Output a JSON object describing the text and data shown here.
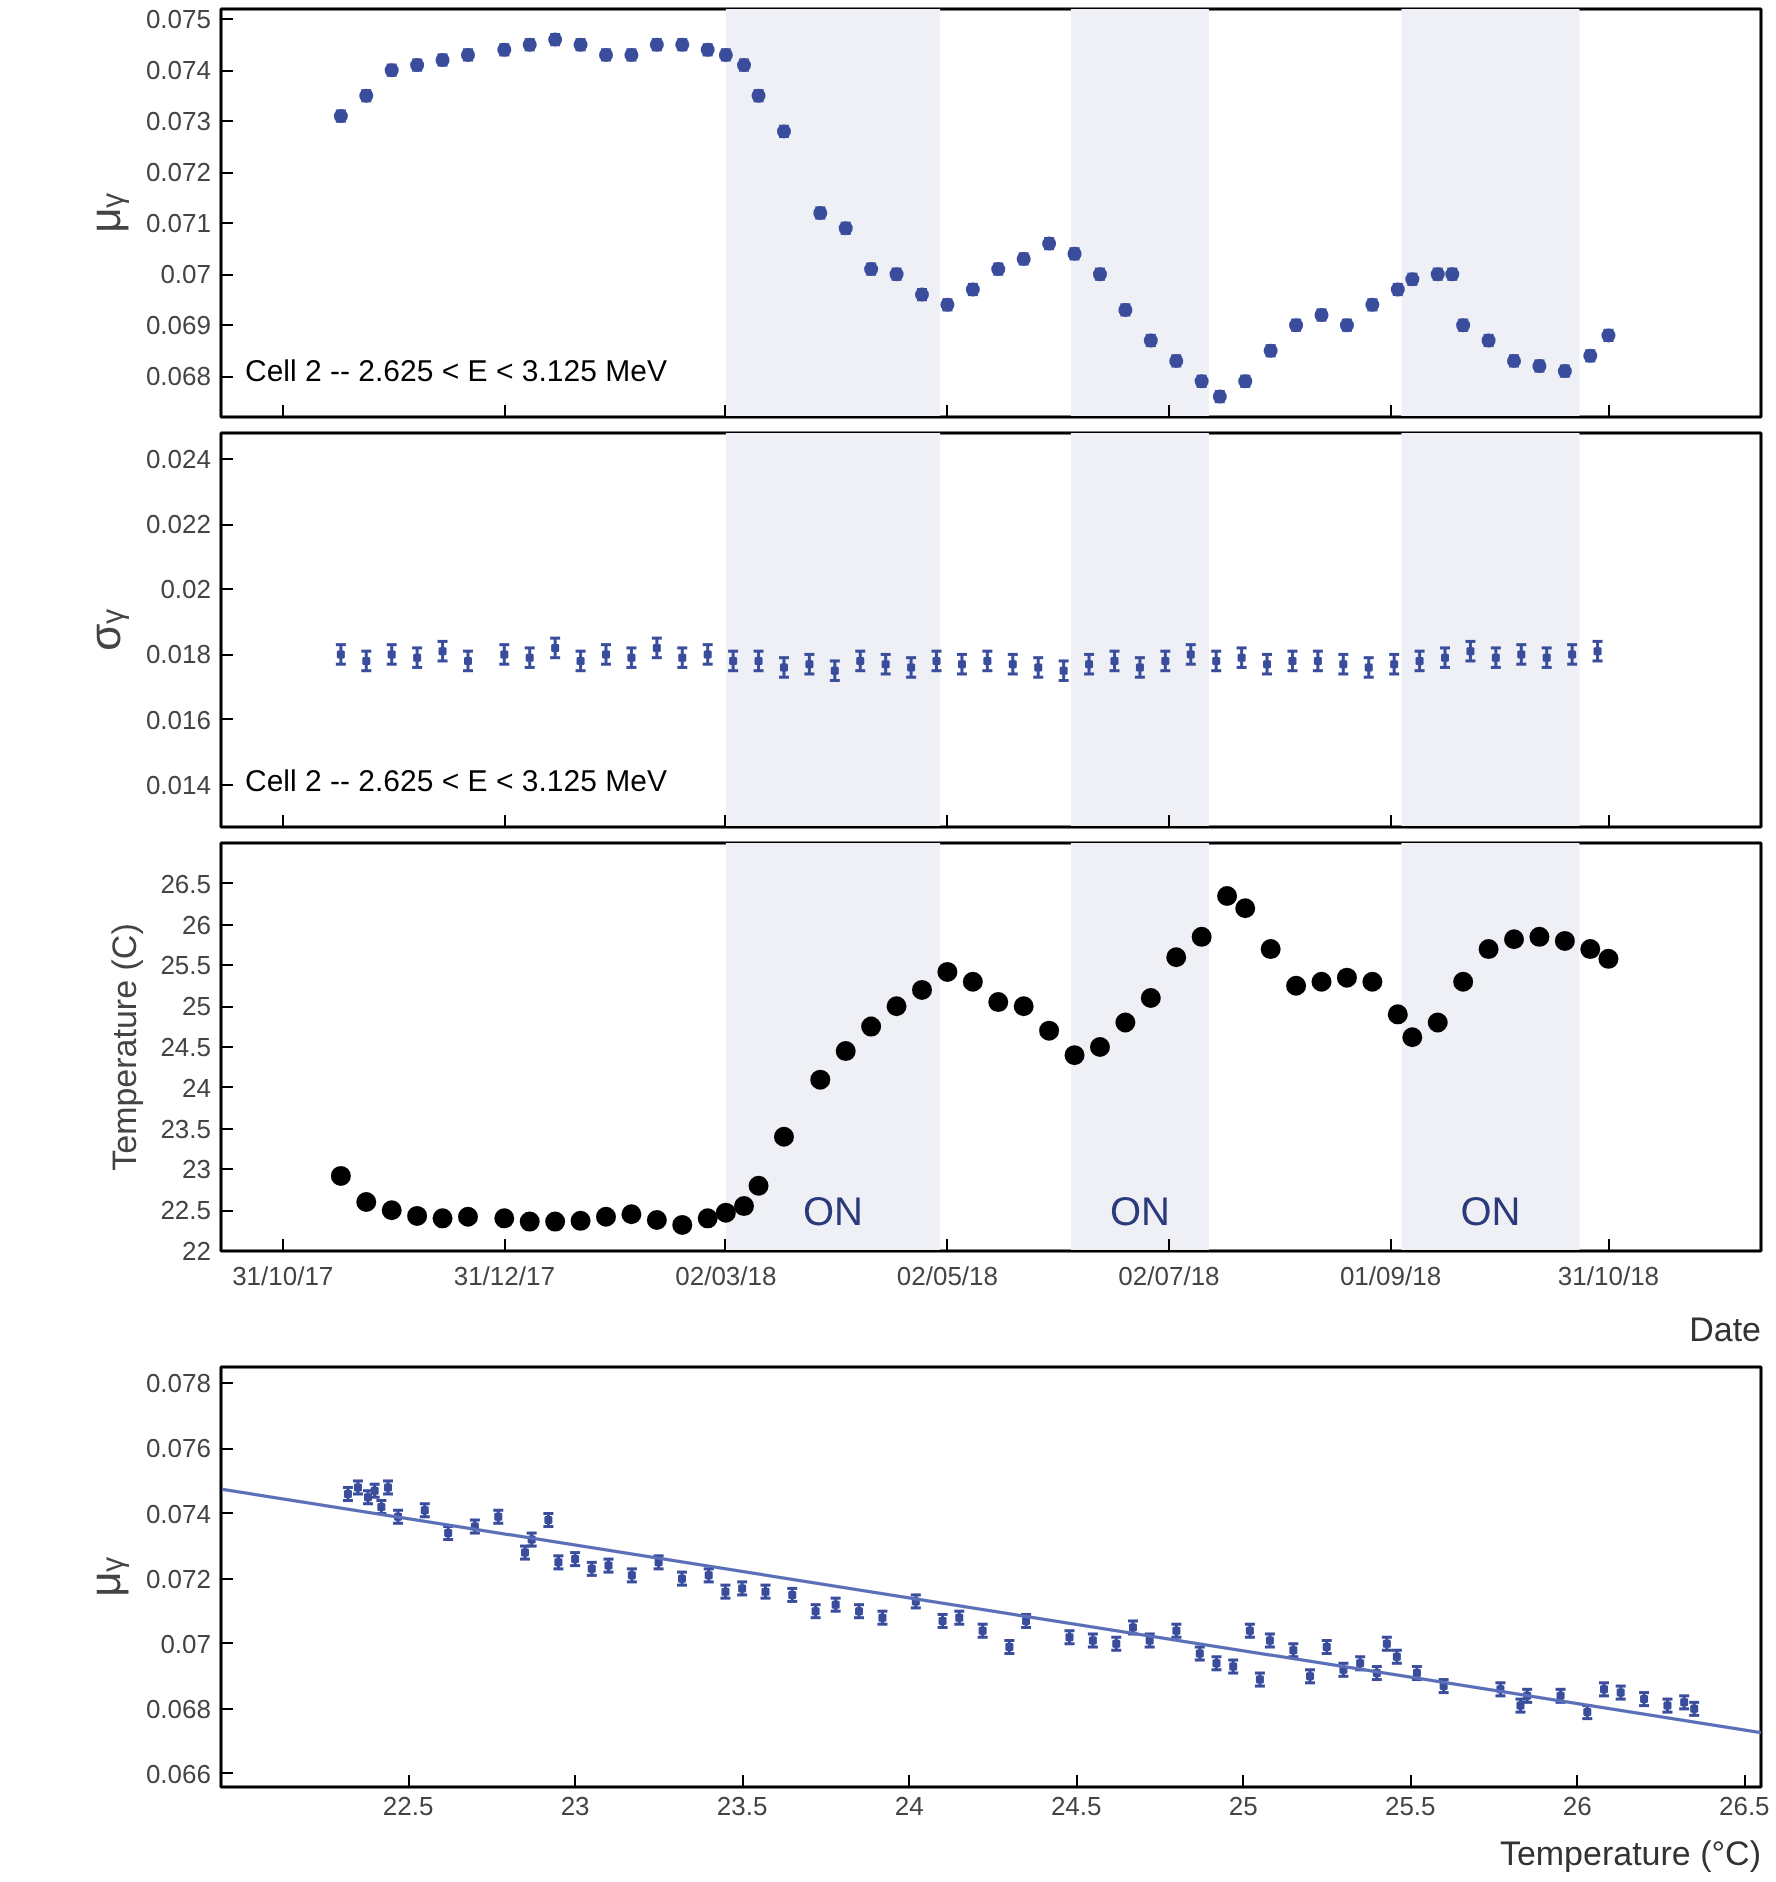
{
  "chart_data": [
    {
      "type": "scatter",
      "ylabel": "μᵧ",
      "marker": "circle",
      "tick_labels": "y",
      "grid": false,
      "x": [
        "2017-11-16",
        "2017-11-23",
        "2017-11-30",
        "2017-12-07",
        "2017-12-14",
        "2017-12-21",
        "2017-12-31",
        "2018-01-07",
        "2018-01-14",
        "2018-01-21",
        "2018-01-28",
        "2018-02-04",
        "2018-02-11",
        "2018-02-18",
        "2018-02-25",
        "2018-03-02",
        "2018-03-07",
        "2018-03-11",
        "2018-03-18",
        "2018-03-28",
        "2018-04-04",
        "2018-04-11",
        "2018-04-18",
        "2018-04-25",
        "2018-05-02",
        "2018-05-09",
        "2018-05-16",
        "2018-05-23",
        "2018-05-30",
        "2018-06-06",
        "2018-06-13",
        "2018-06-20",
        "2018-06-27",
        "2018-07-04",
        "2018-07-11",
        "2018-07-16",
        "2018-07-23",
        "2018-07-30",
        "2018-08-06",
        "2018-08-13",
        "2018-08-20",
        "2018-08-27",
        "2018-09-03",
        "2018-09-07",
        "2018-09-14",
        "2018-09-18",
        "2018-09-21",
        "2018-09-28",
        "2018-10-05",
        "2018-10-12",
        "2018-10-19",
        "2018-10-26",
        "2018-10-31"
      ],
      "series": [
        {
          "color": "#3a4d9c",
          "errors": [
            0.0001,
            0.0001,
            0.0001,
            0.0001,
            0.0001,
            0.0001,
            0.0001,
            0.0001,
            0.0001,
            0.0001,
            0.0001,
            0.0001,
            0.0001,
            0.0001,
            0.0001,
            0.0001,
            0.0001,
            0.0001,
            0.0001,
            0.0001,
            0.0001,
            0.0001,
            0.0001,
            0.0001,
            0.0001,
            0.0001,
            0.0001,
            0.0001,
            0.0001,
            0.0001,
            0.0001,
            0.0001,
            0.0001,
            0.0001,
            0.0001,
            0.0001,
            0.0001,
            0.0001,
            0.0001,
            0.0001,
            0.0001,
            0.0001,
            0.0001,
            0.0001,
            0.0001,
            0.0001,
            0.0001,
            0.0001,
            0.0001,
            0.0001,
            0.0001,
            0.0001,
            0.0001
          ],
          "values": [
            0.0731,
            0.0735,
            0.074,
            0.0741,
            0.0742,
            0.0743,
            0.0744,
            0.0745,
            0.0746,
            0.0745,
            0.0743,
            0.0743,
            0.0745,
            0.0745,
            0.0744,
            0.0743,
            0.0741,
            0.0735,
            0.0728,
            0.0712,
            0.0709,
            0.0701,
            0.07,
            0.0696,
            0.0694,
            0.0697,
            0.0701,
            0.0703,
            0.0706,
            0.0704,
            0.07,
            0.0693,
            0.0687,
            0.0683,
            0.0679,
            0.0676,
            0.0679,
            0.0685,
            0.069,
            0.0692,
            0.069,
            0.0694,
            0.0697,
            0.0699,
            0.07,
            0.07,
            0.069,
            0.0687,
            0.0683,
            0.0682,
            0.0681,
            0.0684,
            0.0688
          ]
        }
      ],
      "xlim": [
        "2017-10-14",
        "2018-12-12"
      ],
      "xticks": [
        {
          "value": "2017-10-31",
          "label": null
        },
        {
          "value": "2017-12-31",
          "label": null
        },
        {
          "value": "2018-03-02",
          "label": null
        },
        {
          "value": "2018-05-02",
          "label": null
        },
        {
          "value": "2018-07-02",
          "label": null
        },
        {
          "value": "2018-09-01",
          "label": null
        },
        {
          "value": "2018-10-31",
          "label": null
        }
      ],
      "ylim": [
        0.0672,
        0.0752
      ],
      "yticks": [
        0.068,
        0.069,
        0.07,
        0.071,
        0.072,
        0.073,
        0.074,
        0.075
      ],
      "bands": [
        {
          "axis": "x",
          "from": "2018-03-02",
          "to": "2018-04-30",
          "color": "#eef0f6"
        },
        {
          "axis": "x",
          "from": "2018-06-05",
          "to": "2018-07-13",
          "color": "#eef0f6"
        },
        {
          "axis": "x",
          "from": "2018-09-04",
          "to": "2018-10-23",
          "color": "#eef0f6"
        }
      ],
      "annotations": [
        "Cell 2 -- 2.625 < E < 3.125 MeV"
      ]
    },
    {
      "type": "scatter",
      "ylabel": "σᵧ",
      "marker": "square",
      "tick_labels": "y",
      "grid": false,
      "x": [
        "2017-11-16",
        "2017-11-23",
        "2017-11-30",
        "2017-12-07",
        "2017-12-14",
        "2017-12-21",
        "2017-12-31",
        "2018-01-07",
        "2018-01-14",
        "2018-01-21",
        "2018-01-28",
        "2018-02-04",
        "2018-02-11",
        "2018-02-18",
        "2018-02-25",
        "2018-03-04",
        "2018-03-11",
        "2018-03-18",
        "2018-03-25",
        "2018-04-01",
        "2018-04-08",
        "2018-04-15",
        "2018-04-22",
        "2018-04-29",
        "2018-05-06",
        "2018-05-13",
        "2018-05-20",
        "2018-05-27",
        "2018-06-03",
        "2018-06-10",
        "2018-06-17",
        "2018-06-24",
        "2018-07-01",
        "2018-07-08",
        "2018-07-15",
        "2018-07-22",
        "2018-07-29",
        "2018-08-05",
        "2018-08-12",
        "2018-08-19",
        "2018-08-26",
        "2018-09-02",
        "2018-09-09",
        "2018-09-16",
        "2018-09-23",
        "2018-09-30",
        "2018-10-07",
        "2018-10-14",
        "2018-10-21",
        "2018-10-28"
      ],
      "series": [
        {
          "color": "#3a4d9c",
          "errors": [
            0.0003,
            0.0003,
            0.0003,
            0.0003,
            0.0003,
            0.0003,
            0.0003,
            0.0003,
            0.0003,
            0.0003,
            0.0003,
            0.0003,
            0.0003,
            0.0003,
            0.0003,
            0.0003,
            0.0003,
            0.0003,
            0.0003,
            0.0003,
            0.0003,
            0.0003,
            0.0003,
            0.0003,
            0.0003,
            0.0003,
            0.0003,
            0.0003,
            0.0003,
            0.0003,
            0.0003,
            0.0003,
            0.0003,
            0.0003,
            0.0003,
            0.0003,
            0.0003,
            0.0003,
            0.0003,
            0.0003,
            0.0003,
            0.0003,
            0.0003,
            0.0003,
            0.0003,
            0.0003,
            0.0003,
            0.0003,
            0.0003,
            0.0003
          ],
          "values": [
            0.018,
            0.0178,
            0.018,
            0.0179,
            0.0181,
            0.0178,
            0.018,
            0.0179,
            0.0182,
            0.0178,
            0.018,
            0.0179,
            0.0182,
            0.0179,
            0.018,
            0.0178,
            0.0178,
            0.0176,
            0.0177,
            0.0175,
            0.0178,
            0.0177,
            0.0176,
            0.0178,
            0.0177,
            0.0178,
            0.0177,
            0.0176,
            0.0175,
            0.0177,
            0.0178,
            0.0176,
            0.0178,
            0.018,
            0.0178,
            0.0179,
            0.0177,
            0.0178,
            0.0178,
            0.0177,
            0.0176,
            0.0177,
            0.0178,
            0.0179,
            0.0181,
            0.0179,
            0.018,
            0.0179,
            0.018,
            0.0181
          ]
        }
      ],
      "xlim": [
        "2017-10-14",
        "2018-12-12"
      ],
      "xticks": [
        {
          "value": "2017-10-31",
          "label": null
        },
        {
          "value": "2017-12-31",
          "label": null
        },
        {
          "value": "2018-03-02",
          "label": null
        },
        {
          "value": "2018-05-02",
          "label": null
        },
        {
          "value": "2018-07-02",
          "label": null
        },
        {
          "value": "2018-09-01",
          "label": null
        },
        {
          "value": "2018-10-31",
          "label": null
        }
      ],
      "ylim": [
        0.0127,
        0.0248
      ],
      "yticks": [
        0.014,
        0.016,
        0.018,
        0.02,
        0.022,
        0.024
      ],
      "bands": [
        {
          "axis": "x",
          "from": "2018-03-02",
          "to": "2018-04-30",
          "color": "#eef0f6"
        },
        {
          "axis": "x",
          "from": "2018-06-05",
          "to": "2018-07-13",
          "color": "#eef0f6"
        },
        {
          "axis": "x",
          "from": "2018-09-04",
          "to": "2018-10-23",
          "color": "#eef0f6"
        }
      ],
      "annotations": [
        "Cell 2 -- 2.625 < E < 3.125 MeV"
      ]
    },
    {
      "type": "scatter",
      "ylabel": "Temperature (C)",
      "xlabel": "Date",
      "marker": "circle",
      "grid": false,
      "x": [
        "2017-11-16",
        "2017-11-23",
        "2017-11-30",
        "2017-12-07",
        "2017-12-14",
        "2017-12-21",
        "2017-12-31",
        "2018-01-07",
        "2018-01-14",
        "2018-01-21",
        "2018-01-28",
        "2018-02-04",
        "2018-02-11",
        "2018-02-18",
        "2018-02-25",
        "2018-03-02",
        "2018-03-07",
        "2018-03-11",
        "2018-03-18",
        "2018-03-28",
        "2018-04-04",
        "2018-04-11",
        "2018-04-18",
        "2018-04-25",
        "2018-05-02",
        "2018-05-09",
        "2018-05-16",
        "2018-05-23",
        "2018-05-30",
        "2018-06-06",
        "2018-06-13",
        "2018-06-20",
        "2018-06-27",
        "2018-07-04",
        "2018-07-11",
        "2018-07-18",
        "2018-07-23",
        "2018-07-30",
        "2018-08-06",
        "2018-08-13",
        "2018-08-20",
        "2018-08-27",
        "2018-09-03",
        "2018-09-07",
        "2018-09-14",
        "2018-09-21",
        "2018-09-28",
        "2018-10-05",
        "2018-10-12",
        "2018-10-19",
        "2018-10-26",
        "2018-10-31"
      ],
      "series": [
        {
          "color": "#000000",
          "values": [
            22.92,
            22.6,
            22.5,
            22.43,
            22.4,
            22.42,
            22.4,
            22.36,
            22.36,
            22.37,
            22.42,
            22.45,
            22.38,
            22.32,
            22.4,
            22.47,
            22.55,
            22.8,
            23.4,
            24.1,
            24.45,
            24.75,
            25.0,
            25.2,
            25.42,
            25.3,
            25.05,
            25.0,
            24.7,
            24.4,
            24.5,
            24.8,
            25.1,
            25.6,
            25.85,
            26.35,
            26.2,
            25.7,
            25.25,
            25.3,
            25.35,
            25.3,
            24.9,
            24.62,
            24.8,
            25.3,
            25.7,
            25.82,
            25.85,
            25.8,
            25.7,
            25.58
          ]
        }
      ],
      "xlim": [
        "2017-10-14",
        "2018-12-12"
      ],
      "xticks": [
        {
          "value": "2017-10-31",
          "label": "31/10/17"
        },
        {
          "value": "2017-12-31",
          "label": "31/12/17"
        },
        {
          "value": "2018-03-02",
          "label": "02/03/18"
        },
        {
          "value": "2018-05-02",
          "label": "02/05/18"
        },
        {
          "value": "2018-07-02",
          "label": "02/07/18"
        },
        {
          "value": "2018-09-01",
          "label": "01/09/18"
        },
        {
          "value": "2018-10-31",
          "label": "31/10/18"
        }
      ],
      "ylim": [
        22,
        27.0
      ],
      "yticks": [
        22,
        22.5,
        23,
        23.5,
        24,
        24.5,
        25,
        25.5,
        26,
        26.5
      ],
      "bands": [
        {
          "axis": "x",
          "from": "2018-03-02",
          "to": "2018-04-30",
          "color": "#eef0f6",
          "label": "ON"
        },
        {
          "axis": "x",
          "from": "2018-06-05",
          "to": "2018-07-13",
          "color": "#eef0f6",
          "label": "ON"
        },
        {
          "axis": "x",
          "from": "2018-09-04",
          "to": "2018-10-23",
          "color": "#eef0f6",
          "label": "ON"
        }
      ]
    },
    {
      "type": "scatter",
      "ylabel": "μᵧ",
      "xlabel": "Temperature (°C)",
      "grid": false,
      "x": [
        22.32,
        22.35,
        22.38,
        22.4,
        22.42,
        22.44,
        22.47,
        22.55,
        22.62,
        22.7,
        22.77,
        22.85,
        22.87,
        22.92,
        22.95,
        23.0,
        23.05,
        23.1,
        23.17,
        23.25,
        23.32,
        23.4,
        23.45,
        23.5,
        23.57,
        23.65,
        23.72,
        23.78,
        23.85,
        23.92,
        24.02,
        24.1,
        24.15,
        24.22,
        24.3,
        24.35,
        24.48,
        24.55,
        24.62,
        24.67,
        24.72,
        24.8,
        24.87,
        24.92,
        24.97,
        25.02,
        25.05,
        25.08,
        25.15,
        25.2,
        25.25,
        25.3,
        25.35,
        25.4,
        25.43,
        25.46,
        25.52,
        25.6,
        25.77,
        25.83,
        25.85,
        25.95,
        26.03,
        26.08,
        26.13,
        26.2,
        26.27,
        26.32,
        26.35
      ],
      "series": [
        {
          "color": "#3a4d9c",
          "marker": "square",
          "errors": [
            0.0002,
            0.0002,
            0.0002,
            0.0002,
            0.0002,
            0.0002,
            0.0002,
            0.0002,
            0.0002,
            0.0002,
            0.0002,
            0.0002,
            0.0002,
            0.0002,
            0.0002,
            0.0002,
            0.0002,
            0.0002,
            0.0002,
            0.0002,
            0.0002,
            0.0002,
            0.0002,
            0.0002,
            0.0002,
            0.0002,
            0.0002,
            0.0002,
            0.0002,
            0.0002,
            0.0002,
            0.0002,
            0.0002,
            0.0002,
            0.0002,
            0.0002,
            0.0002,
            0.0002,
            0.0002,
            0.0002,
            0.0002,
            0.0002,
            0.0002,
            0.0002,
            0.0002,
            0.0002,
            0.0002,
            0.0002,
            0.0002,
            0.0002,
            0.0002,
            0.0002,
            0.0002,
            0.0002,
            0.0002,
            0.0002,
            0.0002,
            0.0002,
            0.0002,
            0.0002,
            0.0002,
            0.0002,
            0.0002,
            0.0002,
            0.0002,
            0.0002,
            0.0002,
            0.0002,
            0.0002
          ],
          "values": [
            0.0746,
            0.0748,
            0.0745,
            0.0747,
            0.0742,
            0.0748,
            0.0739,
            0.0741,
            0.0734,
            0.0736,
            0.0739,
            0.0728,
            0.0732,
            0.0738,
            0.0725,
            0.0726,
            0.0723,
            0.0724,
            0.0721,
            0.0725,
            0.072,
            0.0721,
            0.0716,
            0.0717,
            0.0716,
            0.0715,
            0.071,
            0.0712,
            0.071,
            0.0708,
            0.0713,
            0.0707,
            0.0708,
            0.0704,
            0.0699,
            0.0707,
            0.0702,
            0.0701,
            0.07,
            0.0705,
            0.0701,
            0.0704,
            0.0697,
            0.0694,
            0.0693,
            0.0704,
            0.0689,
            0.0701,
            0.0698,
            0.069,
            0.0699,
            0.0692,
            0.0694,
            0.0691,
            0.07,
            0.0696,
            0.0691,
            0.0687,
            0.0686,
            0.0681,
            0.0684,
            0.0684,
            0.0679,
            0.0686,
            0.0685,
            0.0683,
            0.0681,
            0.0682,
            0.068
          ]
        },
        {
          "type": "line",
          "color": "#5a6fb8",
          "x": [
            21.94,
            26.55
          ],
          "values": [
            0.07475,
            0.06727
          ]
        }
      ],
      "xlim": [
        21.94,
        26.55
      ],
      "xticks": [
        22.5,
        23,
        23.5,
        24,
        24.5,
        25,
        25.5,
        26,
        26.5
      ],
      "ylim": [
        0.0656,
        0.0785
      ],
      "yticks": [
        0.066,
        0.068,
        0.07,
        0.072,
        0.074,
        0.076,
        0.078
      ]
    }
  ]
}
